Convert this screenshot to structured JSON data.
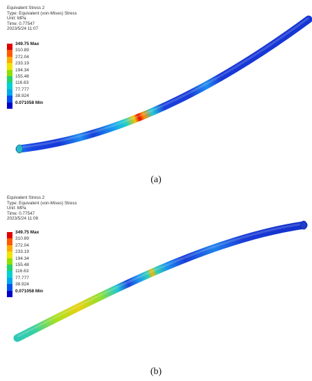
{
  "panels": [
    {
      "caption": "(a)",
      "info": {
        "title": "Equivalent Stress 2",
        "type": "Type: Equivalent (von-Mises) Stress",
        "unit": "Unit: MPa",
        "time": "Time: 0.77547",
        "date": "2023/5/24 11:07"
      }
    },
    {
      "caption": "(b)",
      "info": {
        "title": "Equivalent Stress 2",
        "type": "Type: Equivalent (von-Mises) Stress",
        "unit": "Unit: MPa",
        "time": "Time: 0.77547",
        "date": "2023/5/24 11:08"
      }
    }
  ],
  "legend": {
    "labels": [
      "349.75 Max",
      "310.89",
      "272.04",
      "233.19",
      "194.34",
      "155.48",
      "116.63",
      "77.777",
      "38.924",
      "0.071058 Min"
    ],
    "colors": [
      "#e00000",
      "#ff5a00",
      "#ffaa00",
      "#f0e400",
      "#8fe000",
      "#22d46a",
      "#00d2d2",
      "#00a8f0",
      "#0050f0",
      "#0000c8"
    ]
  }
}
